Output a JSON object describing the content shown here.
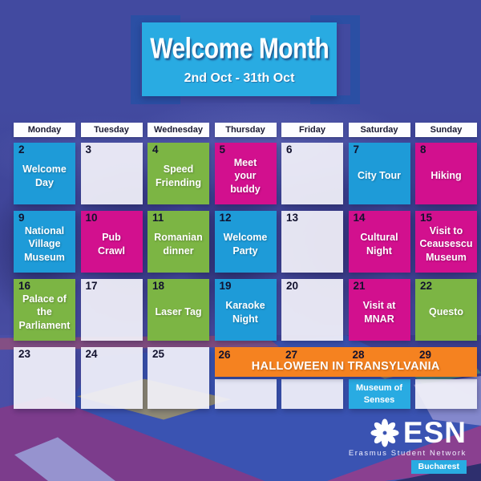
{
  "colors": {
    "purple_bg": "#424AA0",
    "blue": "#1E9BD8",
    "green": "#7CB544",
    "magenta": "#D2108E",
    "orange": "#F58220",
    "lightblue": "#29ABE2",
    "bracket": "#2B4FA4",
    "empty": "rgba(243,242,250,0.92)"
  },
  "header": {
    "title": "Welcome Month",
    "subtitle": "2nd Oct - 31th Oct"
  },
  "weekdays": [
    "Monday",
    "Tuesday",
    "Wednesday",
    "Thursday",
    "Friday",
    "Saturday",
    "Sunday"
  ],
  "calendar": {
    "cells": [
      {
        "date": "2",
        "label": "Welcome\nDay",
        "color": "blue"
      },
      {
        "date": "3",
        "label": "",
        "color": "empty"
      },
      {
        "date": "4",
        "label": "Speed\nFriending",
        "color": "green"
      },
      {
        "date": "5",
        "label": "Meet\nyour\nbuddy",
        "color": "magenta"
      },
      {
        "date": "6",
        "label": "",
        "color": "empty"
      },
      {
        "date": "7",
        "label": "City Tour",
        "color": "blue"
      },
      {
        "date": "8",
        "label": "Hiking",
        "color": "magenta"
      },
      {
        "date": "9",
        "label": "National\nVillage\nMuseum",
        "color": "blue"
      },
      {
        "date": "10",
        "label": "Pub\nCrawl",
        "color": "magenta"
      },
      {
        "date": "11",
        "label": "Romanian\ndinner",
        "color": "green"
      },
      {
        "date": "12",
        "label": "Welcome\nParty",
        "color": "blue"
      },
      {
        "date": "13",
        "label": "",
        "color": "empty"
      },
      {
        "date": "14",
        "label": "Cultural\nNight",
        "color": "magenta"
      },
      {
        "date": "15",
        "label": "Visit to\nCeausescu\nMuseum",
        "color": "magenta"
      },
      {
        "date": "16",
        "label": "Palace of\nthe\nParliament",
        "color": "green"
      },
      {
        "date": "17",
        "label": "",
        "color": "empty"
      },
      {
        "date": "18",
        "label": "Laser Tag",
        "color": "green"
      },
      {
        "date": "19",
        "label": "Karaoke\nNight",
        "color": "blue"
      },
      {
        "date": "20",
        "label": "",
        "color": "empty"
      },
      {
        "date": "21",
        "label": "Visit at\nMNAR",
        "color": "magenta"
      },
      {
        "date": "22",
        "label": "Questo",
        "color": "green"
      },
      {
        "date": "23",
        "label": "",
        "color": "empty"
      },
      {
        "date": "24",
        "label": "",
        "color": "empty"
      },
      {
        "date": "25",
        "label": "",
        "color": "empty"
      }
    ],
    "halloween": {
      "title": "HALLOWEEN IN TRANSYLVANIA",
      "dates": [
        "26",
        "27",
        "28",
        "29"
      ],
      "subcells": [
        {
          "label": "",
          "color": "empty"
        },
        {
          "label": "",
          "color": "empty"
        },
        {
          "label": "Museum of\nSenses",
          "color": "lightblue"
        },
        {
          "label": "",
          "color": "empty"
        }
      ]
    }
  },
  "footer": {
    "logo_text": "ESN",
    "org_name": "Erasmus Student Network",
    "city": "Bucharest"
  }
}
